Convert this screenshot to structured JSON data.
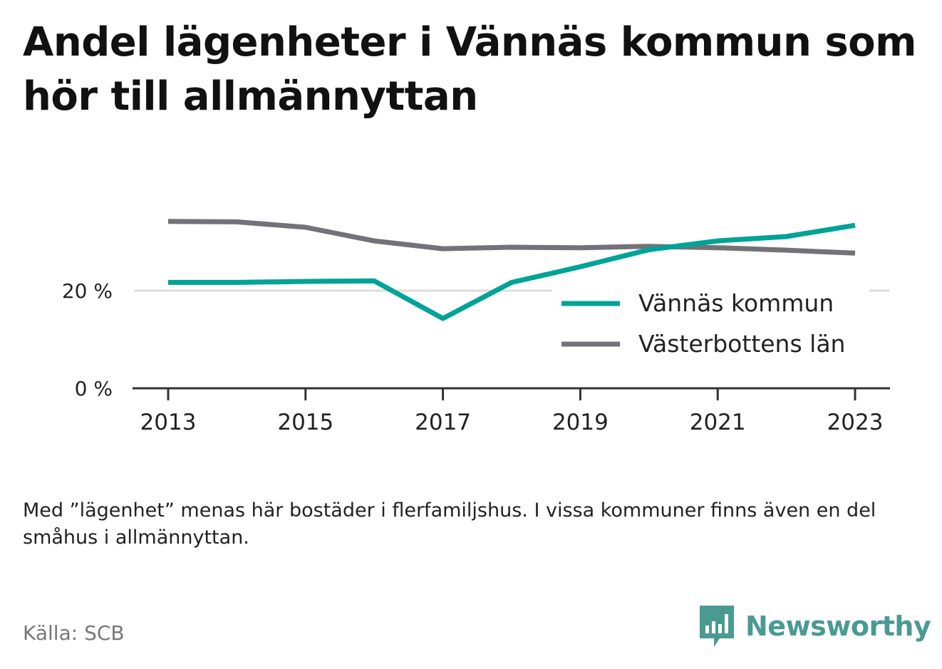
{
  "title": "Andel lägenheter i Vännäs kommun som hör till allmännyttan",
  "note": "Med ”lägenhet” menas här bostäder i flerfamiljshus. I vissa kommuner finns även en del småhus i allmännyttan.",
  "source": "Källa: SCB",
  "brand": {
    "name": "Newsworthy",
    "icon": "newsworthy-logo-icon",
    "color": "#4a9a92"
  },
  "chart_data": {
    "type": "line",
    "title": "Andel lägenheter i Vännäs kommun som hör till allmännyttan",
    "x": [
      2013,
      2014,
      2015,
      2016,
      2017,
      2018,
      2019,
      2020,
      2021,
      2022,
      2023
    ],
    "x_ticks": [
      "2013",
      "2015",
      "2017",
      "2019",
      "2021",
      "2023"
    ],
    "x_tick_values": [
      2013,
      2015,
      2017,
      2019,
      2021,
      2023
    ],
    "y_ticks": [
      "0 %",
      "20 %"
    ],
    "y_tick_values": [
      0,
      20
    ],
    "ylim": [
      0,
      37
    ],
    "grid": "horizontal",
    "legend_position": "bottom-right",
    "series": [
      {
        "name": "Vännäs kommun",
        "color": "#00a397",
        "values": [
          21.7,
          21.7,
          21.9,
          22.0,
          14.3,
          21.7,
          24.9,
          28.4,
          30.2,
          31.1,
          33.4
        ]
      },
      {
        "name": "Västerbottens län",
        "color": "#737278",
        "values": [
          34.2,
          34.1,
          33.0,
          30.2,
          28.6,
          28.9,
          28.8,
          29.1,
          28.8,
          28.3,
          27.7
        ]
      }
    ]
  }
}
